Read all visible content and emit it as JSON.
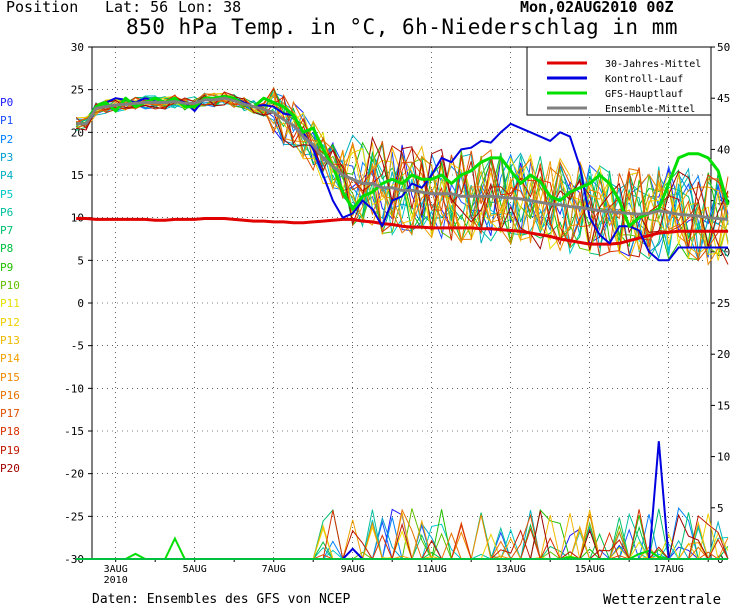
{
  "header": {
    "position_label": "Position",
    "lat_label": "Lat: 56",
    "lon_label": "Lon: 38",
    "run_date": "Mon,02AUG2010 00Z"
  },
  "footer": {
    "source": "Daten: Ensembles des GFS von NCEP",
    "brand": "Wetterzentrale"
  },
  "run_labels": [
    {
      "label": "P0",
      "color": "#1a1aff"
    },
    {
      "label": "P1",
      "color": "#1a4dff"
    },
    {
      "label": "P2",
      "color": "#0080ff"
    },
    {
      "label": "P3",
      "color": "#00a0d0"
    },
    {
      "label": "P4",
      "color": "#00b0c0"
    },
    {
      "label": "P5",
      "color": "#00c8c8"
    },
    {
      "label": "P6",
      "color": "#00c0a0"
    },
    {
      "label": "P7",
      "color": "#00c070"
    },
    {
      "label": "P8",
      "color": "#00c040"
    },
    {
      "label": "P9",
      "color": "#20c000"
    },
    {
      "label": "P10",
      "color": "#60c000"
    },
    {
      "label": "P11",
      "color": "#e8e000"
    },
    {
      "label": "P12",
      "color": "#f0d000"
    },
    {
      "label": "P13",
      "color": "#f0b800"
    },
    {
      "label": "P14",
      "color": "#f0a000"
    },
    {
      "label": "P15",
      "color": "#f08800"
    },
    {
      "label": "P16",
      "color": "#e87000"
    },
    {
      "label": "P17",
      "color": "#e05000"
    },
    {
      "label": "P18",
      "color": "#d83000"
    },
    {
      "label": "P19",
      "color": "#c01800"
    },
    {
      "label": "P20",
      "color": "#a00000"
    }
  ],
  "chart_data": {
    "type": "line",
    "title": "850 hPa Temp. in °C, 6h-Niederschlag in mm",
    "x_tick_labels": [
      "3AUG",
      "5AUG",
      "7AUG",
      "9AUG",
      "11AUG",
      "13AUG",
      "15AUG",
      "17AUG"
    ],
    "x_tick_sublabel": "2010",
    "x_range_days": [
      0,
      16.75
    ],
    "y_left_ticks": [
      30,
      25,
      20,
      15,
      10,
      5,
      0,
      -5,
      -10,
      -15,
      -20,
      -25,
      -30
    ],
    "y_left_range": [
      -30,
      30
    ],
    "y_right_ticks": [
      50,
      45,
      40,
      35,
      30,
      25,
      20,
      15,
      10,
      5,
      0
    ],
    "y_right_range": [
      0,
      50
    ],
    "grid": true,
    "legend_position": "top-right",
    "legend": [
      {
        "name": "30-Jahres-Mittel",
        "color": "#e00000"
      },
      {
        "name": "Kontroll-Lauf",
        "color": "#0000e0"
      },
      {
        "name": "GFS-Hauptlauf",
        "color": "#00e000"
      },
      {
        "name": "Ensemble-Mittel",
        "color": "#808080"
      }
    ],
    "series_temp": [
      {
        "name": "30-Jahres-Mittel",
        "color": "#e00000",
        "width": 3,
        "values": [
          9.9,
          9.9,
          9.8,
          9.8,
          9.8,
          9.8,
          9.8,
          9.8,
          9.7,
          9.7,
          9.8,
          9.8,
          9.8,
          9.9,
          9.9,
          9.9,
          9.8,
          9.7,
          9.6,
          9.6,
          9.5,
          9.5,
          9.4,
          9.4,
          9.5,
          9.6,
          9.7,
          9.8,
          9.8,
          9.6,
          9.5,
          9.3,
          9.2,
          9.0,
          8.9,
          8.9,
          8.8,
          8.8,
          8.8,
          8.8,
          8.8,
          8.7,
          8.7,
          8.6,
          8.5,
          8.4,
          8.2,
          8.0,
          7.8,
          7.5,
          7.3,
          7.1,
          6.9,
          6.9,
          6.9,
          7.0,
          7.3,
          7.6,
          7.9,
          8.2,
          8.3,
          8.4,
          8.4,
          8.4,
          8.4,
          8.4,
          8.4
        ]
      },
      {
        "name": "Kontroll-Lauf",
        "color": "#0000e0",
        "width": 2,
        "values": [
          21,
          21,
          23,
          23.5,
          24,
          23.8,
          23.5,
          24,
          23.6,
          23.5,
          23.8,
          23.5,
          22.5,
          24,
          24,
          24.1,
          24,
          23.5,
          23,
          23.2,
          23,
          22.2,
          22,
          20,
          18,
          15,
          12,
          10,
          10.5,
          12,
          11,
          9,
          12,
          12.5,
          14,
          13.5,
          15,
          17,
          16.5,
          18,
          18.2,
          19,
          18.8,
          20,
          21,
          20.5,
          20,
          19.5,
          19,
          20,
          19.5,
          16,
          10,
          8,
          7,
          9,
          9,
          8.5,
          6,
          5,
          5,
          6.5,
          6.5,
          6.5,
          6.5,
          6.5,
          6.5
        ]
      },
      {
        "name": "GFS-Hauptlauf",
        "color": "#00e000",
        "width": 3,
        "values": [
          21,
          21,
          23,
          23.5,
          22.5,
          24,
          23,
          23.5,
          24,
          23.5,
          24,
          23,
          23,
          24,
          24,
          24.2,
          24,
          23.2,
          23,
          24,
          23.5,
          23,
          22,
          20,
          20.5,
          18,
          16,
          13,
          11,
          12.5,
          13,
          14,
          14.5,
          14,
          15,
          14.5,
          14.5,
          15,
          14,
          15,
          15.5,
          16.5,
          17,
          17,
          15.5,
          14,
          15,
          14.2,
          12.5,
          12,
          13,
          13.5,
          14,
          15,
          14,
          12,
          9,
          10,
          10.5,
          11,
          14,
          17,
          17.5,
          17.5,
          17,
          15.5,
          11.5
        ]
      },
      {
        "name": "Ensemble-Mittel",
        "color": "#808080",
        "width": 3,
        "values": [
          21,
          21,
          22.8,
          23,
          23.2,
          23.3,
          23.4,
          23.5,
          23.5,
          23.5,
          23.6,
          23.4,
          23.4,
          23.8,
          23.8,
          24,
          23.7,
          23.3,
          23.0,
          22.7,
          22.3,
          21.5,
          20.8,
          19.5,
          18.5,
          17,
          16,
          15,
          14.5,
          14,
          14,
          13.5,
          13.5,
          13.2,
          13.2,
          13,
          12.8,
          12.8,
          12.8,
          12.5,
          12.5,
          12.5,
          12.5,
          12.4,
          12.3,
          12.2,
          12,
          11.8,
          11.6,
          11.5,
          11.3,
          11.2,
          11.0,
          10.8,
          10.7,
          10.6,
          10.5,
          10.4,
          10.5,
          10.8,
          10.6,
          10.4,
          10.3,
          10.2,
          10.0,
          9.9,
          9.8
        ]
      }
    ],
    "series_precip": [
      {
        "name": "GFS-Hauptlauf",
        "color": "#00e000",
        "values": [
          0,
          0,
          0,
          0,
          0,
          0,
          0.5,
          0,
          0,
          0,
          2,
          0,
          0,
          0,
          0,
          0,
          0,
          0,
          0,
          0,
          0,
          0,
          0,
          0,
          0,
          0,
          0,
          0,
          0,
          0,
          0,
          0,
          0,
          0,
          0,
          0,
          0,
          0,
          0,
          0,
          0,
          0,
          0,
          0,
          0,
          0,
          0,
          0,
          0,
          0,
          0.2,
          0,
          0,
          0,
          0,
          0,
          0,
          0.5,
          0.8,
          0.2,
          0,
          0,
          0,
          0,
          0,
          0,
          0
        ]
      },
      {
        "name": "Kontroll-Lauf",
        "color": "#0000e0",
        "values": [
          0,
          0,
          0,
          0,
          0,
          0,
          0,
          0,
          0,
          0,
          0,
          0,
          0,
          0,
          0,
          0,
          0,
          0,
          0,
          0,
          0,
          0,
          0,
          0,
          0,
          0,
          0,
          0,
          1,
          0,
          0,
          0,
          0,
          0,
          0,
          0,
          0,
          0,
          0,
          0,
          0,
          0,
          0,
          0,
          0,
          0,
          0,
          0,
          0,
          0,
          0,
          0,
          0,
          0,
          0,
          0,
          0,
          0,
          0,
          11.5,
          0,
          0,
          0,
          0,
          0,
          0,
          0
        ]
      },
      {
        "name": "P5",
        "color": "#00c8c8",
        "values": [
          0,
          0,
          0,
          0,
          0,
          0,
          0,
          0,
          0,
          0,
          0,
          0,
          0,
          0,
          0,
          0,
          0,
          0,
          0,
          0,
          0,
          0,
          0,
          0,
          0,
          0,
          0,
          0,
          0,
          0,
          0,
          0,
          0,
          0,
          0,
          0,
          0,
          0,
          0,
          0,
          0,
          0,
          0,
          0,
          0,
          0,
          0,
          0,
          0,
          0,
          0,
          0,
          0,
          0,
          0,
          0,
          0,
          0,
          0,
          0,
          0,
          0,
          0,
          0,
          0,
          0,
          0
        ]
      },
      {
        "name": "P8",
        "color": "#00c040",
        "values": [
          0,
          0,
          0,
          0,
          0,
          0,
          0,
          0,
          0,
          0,
          0,
          0,
          0,
          0,
          0,
          0,
          0,
          0,
          0,
          0,
          0,
          0,
          0,
          0,
          0,
          0,
          0,
          0,
          0,
          0,
          0,
          0,
          0,
          0,
          0,
          0,
          0,
          0,
          0,
          0,
          0,
          0,
          0,
          0,
          0,
          0,
          0,
          0,
          0,
          0,
          0,
          0,
          0,
          0,
          0,
          0,
          0,
          0,
          0,
          0,
          0,
          0,
          0,
          0,
          0,
          0,
          0
        ]
      }
    ]
  }
}
